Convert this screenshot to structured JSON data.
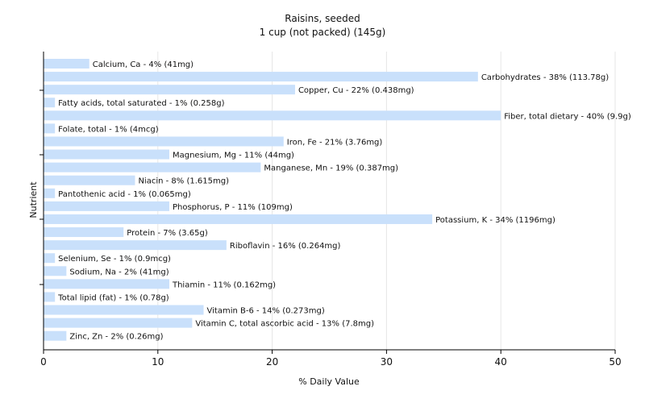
{
  "chart_data": {
    "type": "bar",
    "orientation": "horizontal",
    "title": "Raisins, seeded",
    "subtitle": "1 cup (not packed) (145g)",
    "xlabel": "% Daily Value",
    "ylabel": "Nutrient",
    "xlim": [
      0,
      50
    ],
    "xticks": [
      0,
      10,
      20,
      30,
      40,
      50
    ],
    "grid": true,
    "bar_color": "#c9e0fb",
    "categories": [
      "Calcium, Ca",
      "Carbohydrates",
      "Copper, Cu",
      "Fatty acids, total saturated",
      "Fiber, total dietary",
      "Folate, total",
      "Iron, Fe",
      "Magnesium, Mg",
      "Manganese, Mn",
      "Niacin",
      "Pantothenic acid",
      "Phosphorus, P",
      "Potassium, K",
      "Protein",
      "Riboflavin",
      "Selenium, Se",
      "Sodium, Na",
      "Thiamin",
      "Total lipid (fat)",
      "Vitamin B-6",
      "Vitamin C, total ascorbic acid",
      "Zinc, Zn"
    ],
    "values": [
      4,
      38,
      22,
      1,
      40,
      1,
      21,
      11,
      19,
      8,
      1,
      11,
      34,
      7,
      16,
      1,
      2,
      11,
      1,
      14,
      13,
      2
    ],
    "labels": [
      "Calcium, Ca - 4% (41mg)",
      "Carbohydrates - 38% (113.78g)",
      "Copper, Cu - 22% (0.438mg)",
      "Fatty acids, total saturated - 1% (0.258g)",
      "Fiber, total dietary - 40% (9.9g)",
      "Folate, total - 1% (4mcg)",
      "Iron, Fe - 21% (3.76mg)",
      "Magnesium, Mg - 11% (44mg)",
      "Manganese, Mn - 19% (0.387mg)",
      "Niacin - 8% (1.615mg)",
      "Pantothenic acid - 1% (0.065mg)",
      "Phosphorus, P - 11% (109mg)",
      "Potassium, K - 34% (1196mg)",
      "Protein - 7% (3.65g)",
      "Riboflavin - 16% (0.264mg)",
      "Selenium, Se - 1% (0.9mcg)",
      "Sodium, Na - 2% (41mg)",
      "Thiamin - 11% (0.162mg)",
      "Total lipid (fat) - 1% (0.78g)",
      "Vitamin B-6 - 14% (0.273mg)",
      "Vitamin C, total ascorbic acid - 13% (7.8mg)",
      "Zinc, Zn - 2% (0.26mg)"
    ]
  }
}
